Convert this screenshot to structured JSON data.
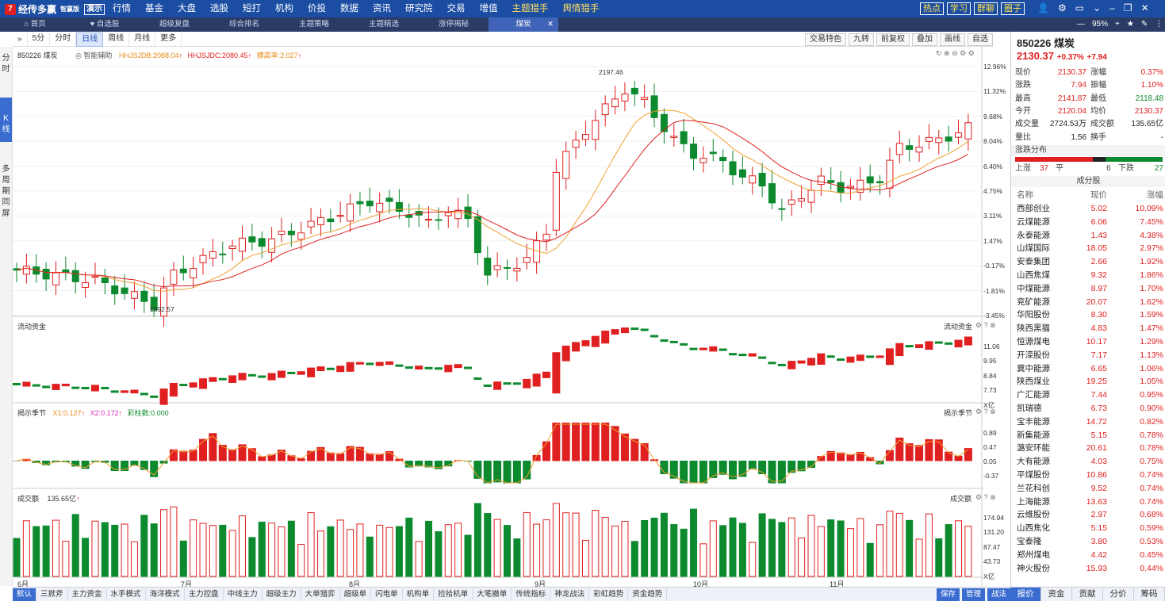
{
  "app": {
    "name": "经传多赢",
    "edition": "智赢版",
    "demo": "演示"
  },
  "nav": [
    "行情",
    "基金",
    "大盘",
    "选股",
    "短打",
    "机构",
    "价投",
    "数据",
    "资讯",
    "研究院",
    "交易",
    "增值",
    "主题猎手",
    "舆情猎手"
  ],
  "top_right": [
    "热点",
    "学习",
    "群聊",
    "圈子"
  ],
  "tabs": [
    "首页",
    "自选股",
    "超级复盘",
    "综合排名",
    "主题策略",
    "主题精选",
    "涨停揭秘",
    "煤炭"
  ],
  "zoom": "95%",
  "kline_toolbar": {
    "left": [
      "5分",
      "分时",
      "日线",
      "周线",
      "月线",
      "更多"
    ],
    "selected": "日线",
    "right": [
      "交易特色",
      "九转",
      "前复权",
      "叠加",
      "画线",
      "自选"
    ]
  },
  "left_tabs": [
    "分时",
    "K线",
    "多周期同屏"
  ],
  "main_panel": {
    "code_name": "850226 煤炭",
    "assist": "智能辅助",
    "ind1": "HHJSJDB:2088.04",
    "ind2": "HHJSJDC:2080.45",
    "ind3": "搏高率:2.027",
    "high_label": "2197.46",
    "low_label": "1892.57",
    "axis": [
      "12.96%",
      "11.32%",
      "9.68%",
      "8.04%",
      "6.40%",
      "4.75%",
      "3.11%",
      "1.47%",
      "-0.17%",
      "-1.81%",
      "-3.45%"
    ]
  },
  "fund_panel": {
    "title": "流动资金",
    "axis": [
      "11.06",
      "9.95",
      "8.84",
      "7.73",
      "X亿"
    ]
  },
  "season_panel": {
    "title": "揭示季节",
    "x1": "X1:0.127",
    "x2": "X2:0.172",
    "bars": "彩柱数:0.000",
    "axis": [
      "0.89",
      "0.47",
      "0.05",
      "-0.37"
    ]
  },
  "vol_panel": {
    "title": "成交额",
    "value": "135.65亿",
    "axis": [
      "174.94",
      "131.20",
      "87.47",
      "43.73",
      "X亿"
    ]
  },
  "months": [
    "6月",
    "7月",
    "8月",
    "9月",
    "10月",
    "11月"
  ],
  "bottom_tabs": [
    "默认",
    "三掀斧",
    "主力资金",
    "水手模式",
    "海洋模式",
    "主力控盘",
    "中线主力",
    "超级主力",
    "大单猎弈",
    "超级单",
    "闪电单",
    "机构单",
    "捡拾机单",
    "大笔撤单",
    "传统指标",
    "神龙战法",
    "彩虹趋势",
    "资金趋势"
  ],
  "bottom_right": [
    "保存",
    "管理",
    "战法"
  ],
  "quote": {
    "code": "850226",
    "name": "煤炭",
    "price": "2130.37",
    "pct": "+0.37%",
    "chg": "+7.94",
    "rows": [
      [
        "现价",
        "2130.37",
        "涨幅",
        "0.37%"
      ],
      [
        "涨跌",
        "7.94",
        "振幅",
        "1.10%"
      ],
      [
        "最高",
        "2141.87",
        "最低",
        "2118.48"
      ],
      [
        "今开",
        "2120.04",
        "均价",
        "2130.37"
      ],
      [
        "成交量",
        "2724.53万",
        "成交额",
        "135.65亿"
      ],
      [
        "量比",
        "1.56",
        "换手",
        "-"
      ]
    ],
    "dist_title": "涨跌分布",
    "up_label": "上涨",
    "up": "37",
    "flat_label": "平",
    "flat": "6",
    "down_label": "下跌",
    "down": "27",
    "comp_title": "成分股",
    "cols": [
      "名称",
      "现价",
      "涨幅"
    ],
    "stocks": [
      [
        "西部创业",
        "5.02",
        "10.09%"
      ],
      [
        "云煤能源",
        "6.06",
        "7.45%"
      ],
      [
        "永泰能源",
        "1.43",
        "4.38%"
      ],
      [
        "山煤国际",
        "18.05",
        "2.97%"
      ],
      [
        "安泰集团",
        "2.66",
        "1.92%"
      ],
      [
        "山西焦煤",
        "9.32",
        "1.86%"
      ],
      [
        "中煤能源",
        "8.97",
        "1.70%"
      ],
      [
        "兖矿能源",
        "20.07",
        "1.62%"
      ],
      [
        "华阳股份",
        "8.30",
        "1.59%"
      ],
      [
        "陕西黑猫",
        "4.83",
        "1.47%"
      ],
      [
        "恒源煤电",
        "10.17",
        "1.29%"
      ],
      [
        "开滦股份",
        "7.17",
        "1.13%"
      ],
      [
        "冀中能源",
        "6.65",
        "1.06%"
      ],
      [
        "陕西煤业",
        "19.25",
        "1.05%"
      ],
      [
        "广汇能源",
        "7.44",
        "0.95%"
      ],
      [
        "凯瑞德",
        "6.73",
        "0.90%"
      ],
      [
        "宝丰能源",
        "14.72",
        "0.82%"
      ],
      [
        "新集能源",
        "5.15",
        "0.78%"
      ],
      [
        "潞安环能",
        "20.61",
        "0.78%"
      ],
      [
        "大有能源",
        "4.03",
        "0.75%"
      ],
      [
        "平煤股份",
        "10.86",
        "0.74%"
      ],
      [
        "兰花科创",
        "9.52",
        "0.74%"
      ],
      [
        "上海能源",
        "13.63",
        "0.74%"
      ],
      [
        "云维股份",
        "2.97",
        "0.68%"
      ],
      [
        "山西焦化",
        "5.15",
        "0.59%"
      ],
      [
        "宝泰隆",
        "3.80",
        "0.53%"
      ],
      [
        "郑州煤电",
        "4.42",
        "0.45%"
      ],
      [
        "神火股份",
        "15.93",
        "0.44%"
      ]
    ]
  },
  "panel_tabs": [
    "报价",
    "资金",
    "贡献",
    "分价",
    "筹码"
  ],
  "colors": {
    "up": "#e02020",
    "down": "#0d8a2e",
    "accent": "#1b4da3"
  }
}
